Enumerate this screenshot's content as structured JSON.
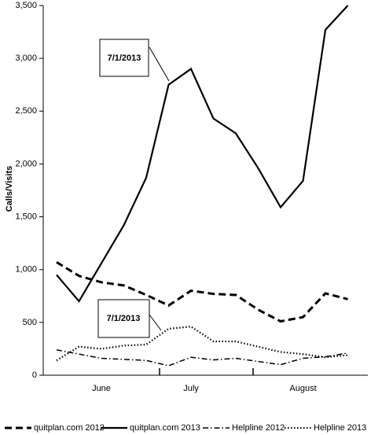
{
  "chart_data": {
    "type": "line",
    "y_label": "Calls/Visits",
    "categories": [
      null,
      null,
      "June",
      null,
      null,
      null,
      "July",
      null,
      null,
      null,
      null,
      "August",
      null,
      null
    ],
    "series": [
      {
        "name": "quitplan.com 2012",
        "color": "#000000",
        "dash": "9,5",
        "width": 3,
        "values": [
          1070,
          940,
          880,
          850,
          760,
          660,
          800,
          770,
          760,
          620,
          510,
          550,
          775,
          720
        ]
      },
      {
        "name": "quitplan.com 2013",
        "color": "#000000",
        "dash": "none",
        "width": 2.2,
        "values": [
          950,
          700,
          1060,
          1420,
          1870,
          2750,
          2900,
          2430,
          2290,
          1960,
          1590,
          1840,
          3270,
          3500
        ]
      },
      {
        "name": "Helpline 2012",
        "color": "#000000",
        "dash": "7,3,1.5,3",
        "width": 1.5,
        "values": [
          240,
          200,
          160,
          150,
          140,
          90,
          170,
          145,
          160,
          130,
          100,
          160,
          175,
          210
        ]
      },
      {
        "name": "Helpline 2013",
        "color": "#000000",
        "dash": "1.5,2.5",
        "width": 2.2,
        "values": [
          140,
          270,
          250,
          280,
          290,
          440,
          460,
          320,
          320,
          270,
          220,
          200,
          170,
          190
        ]
      }
    ],
    "annotations": [
      "7/1/2013",
      "7/1/2013"
    ],
    "ylim": [
      0,
      3500
    ],
    "yticks": [
      0,
      500,
      {
        "value": 1000,
        "label": "1,000"
      },
      {
        "value": 1500,
        "label": "1,500"
      },
      {
        "value": 2000,
        "label": "2,000"
      },
      {
        "value": 2500,
        "label": "2,500"
      },
      {
        "value": 3000,
        "label": "3,000"
      },
      {
        "value": 3500,
        "label": "3,500"
      }
    ]
  }
}
